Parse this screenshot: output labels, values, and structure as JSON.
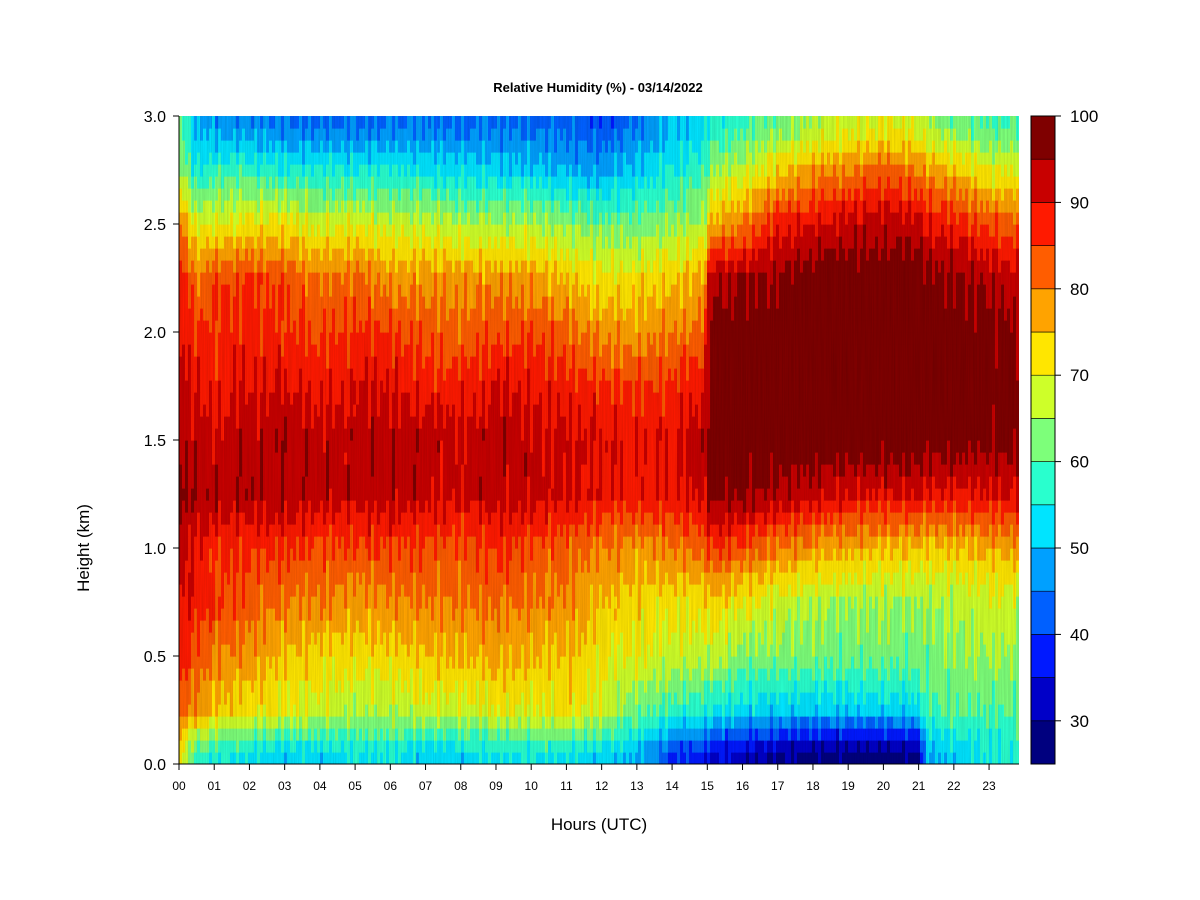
{
  "chart_data": {
    "type": "heatmap",
    "title": "Relative Humidity (%) - 03/14/2022",
    "xlabel": "Hours (UTC)",
    "ylabel": "Height (km)",
    "x_unit": "hour UTC",
    "y_unit": "km",
    "xlim": [
      0,
      23.85
    ],
    "ylim": [
      0,
      3.0
    ],
    "x_ticks": [
      "00",
      "01",
      "02",
      "03",
      "04",
      "05",
      "06",
      "07",
      "08",
      "09",
      "10",
      "11",
      "12",
      "13",
      "14",
      "15",
      "16",
      "17",
      "18",
      "19",
      "20",
      "21",
      "22",
      "23"
    ],
    "y_ticks": [
      "0.0",
      "0.5",
      "1.0",
      "1.5",
      "2.0",
      "2.5",
      "3.0"
    ],
    "colorbar": {
      "min": 25,
      "max": 100,
      "step": 5,
      "ticks": [
        "30",
        "40",
        "50",
        "60",
        "70",
        "80",
        "90",
        "100"
      ],
      "colors": [
        "#00007f",
        "#0000c8",
        "#0019ff",
        "#0060ff",
        "#00a0ff",
        "#00e4ff",
        "#29ffce",
        "#7dff7a",
        "#ceff29",
        "#ffe600",
        "#ffa300",
        "#ff5d00",
        "#ff1a00",
        "#c80000",
        "#7f0000"
      ]
    },
    "grid": false,
    "heights_km": [
      0.05,
      0.25,
      0.5,
      0.75,
      1.0,
      1.25,
      1.5,
      1.75,
      2.0,
      2.25,
      2.5,
      2.75,
      2.95
    ],
    "hours": [
      0.0,
      0.5,
      1,
      2,
      3,
      4,
      5,
      6,
      7,
      8,
      9,
      10,
      11,
      12,
      13,
      14,
      14.9,
      15.1,
      16,
      17,
      18,
      19,
      20,
      21,
      21.2,
      22,
      23,
      23.85
    ],
    "values": [
      [
        72,
        58,
        55,
        54,
        52,
        52,
        55,
        55,
        52,
        52,
        55,
        55,
        54,
        52,
        50,
        40,
        37,
        35,
        33,
        30,
        28,
        27,
        27,
        28,
        48,
        52,
        55,
        56
      ],
      [
        82,
        78,
        75,
        72,
        70,
        68,
        66,
        66,
        68,
        68,
        70,
        70,
        72,
        68,
        62,
        58,
        56,
        55,
        53,
        52,
        51,
        51,
        52,
        53,
        60,
        60,
        60,
        60
      ],
      [
        88,
        84,
        80,
        78,
        75,
        73,
        72,
        73,
        75,
        75,
        77,
        75,
        75,
        71,
        70,
        68,
        67,
        67,
        63,
        63,
        62,
        62,
        62,
        62,
        62,
        64,
        65,
        65
      ],
      [
        90,
        88,
        85,
        83,
        80,
        80,
        78,
        79,
        80,
        80,
        81,
        80,
        79,
        75,
        73,
        72,
        72,
        74,
        71,
        68,
        66,
        65,
        65,
        65,
        65,
        66,
        68,
        68
      ],
      [
        92,
        90,
        86,
        86,
        86,
        84,
        84,
        85,
        84,
        83,
        86,
        84,
        82,
        80,
        78,
        80,
        82,
        86,
        83,
        80,
        78,
        76,
        75,
        75,
        74,
        74,
        76,
        77
      ],
      [
        96,
        94,
        94,
        94,
        94,
        93,
        92,
        93,
        92,
        91,
        93,
        92,
        91,
        89,
        88,
        89,
        91,
        96,
        96,
        94,
        92,
        90,
        90,
        90,
        89,
        89,
        90,
        90
      ],
      [
        94,
        93,
        92,
        93,
        94,
        92,
        93,
        94,
        93,
        91,
        94,
        92,
        91,
        90,
        89,
        90,
        93,
        99,
        99,
        99,
        99,
        99,
        99,
        99,
        98,
        98,
        97,
        97
      ],
      [
        92,
        90,
        88,
        90,
        90,
        88,
        90,
        90,
        88,
        87,
        90,
        89,
        88,
        86,
        85,
        86,
        89,
        99,
        99,
        99,
        99,
        99,
        99,
        99,
        99,
        99,
        98,
        98
      ],
      [
        90,
        86,
        86,
        87,
        86,
        84,
        86,
        85,
        83,
        82,
        84,
        84,
        82,
        78,
        78,
        80,
        82,
        98,
        98,
        99,
        99,
        99,
        99,
        99,
        99,
        98,
        97,
        96
      ],
      [
        88,
        80,
        84,
        85,
        84,
        80,
        82,
        78,
        78,
        78,
        78,
        78,
        75,
        72,
        72,
        74,
        76,
        94,
        95,
        96,
        99,
        99,
        99,
        99,
        97,
        96,
        94,
        92
      ],
      [
        80,
        70,
        70,
        72,
        72,
        68,
        70,
        68,
        68,
        66,
        66,
        66,
        64,
        62,
        62,
        64,
        66,
        76,
        80,
        88,
        90,
        92,
        93,
        92,
        90,
        88,
        84,
        82
      ],
      [
        66,
        55,
        58,
        58,
        56,
        56,
        55,
        55,
        54,
        53,
        52,
        52,
        50,
        48,
        52,
        55,
        58,
        64,
        68,
        73,
        78,
        80,
        82,
        80,
        78,
        75,
        70,
        70
      ],
      [
        62,
        50,
        48,
        46,
        45,
        44,
        44,
        45,
        45,
        44,
        44,
        44,
        43,
        41,
        45,
        50,
        52,
        56,
        58,
        62,
        66,
        68,
        70,
        68,
        66,
        62,
        60,
        60
      ]
    ]
  }
}
